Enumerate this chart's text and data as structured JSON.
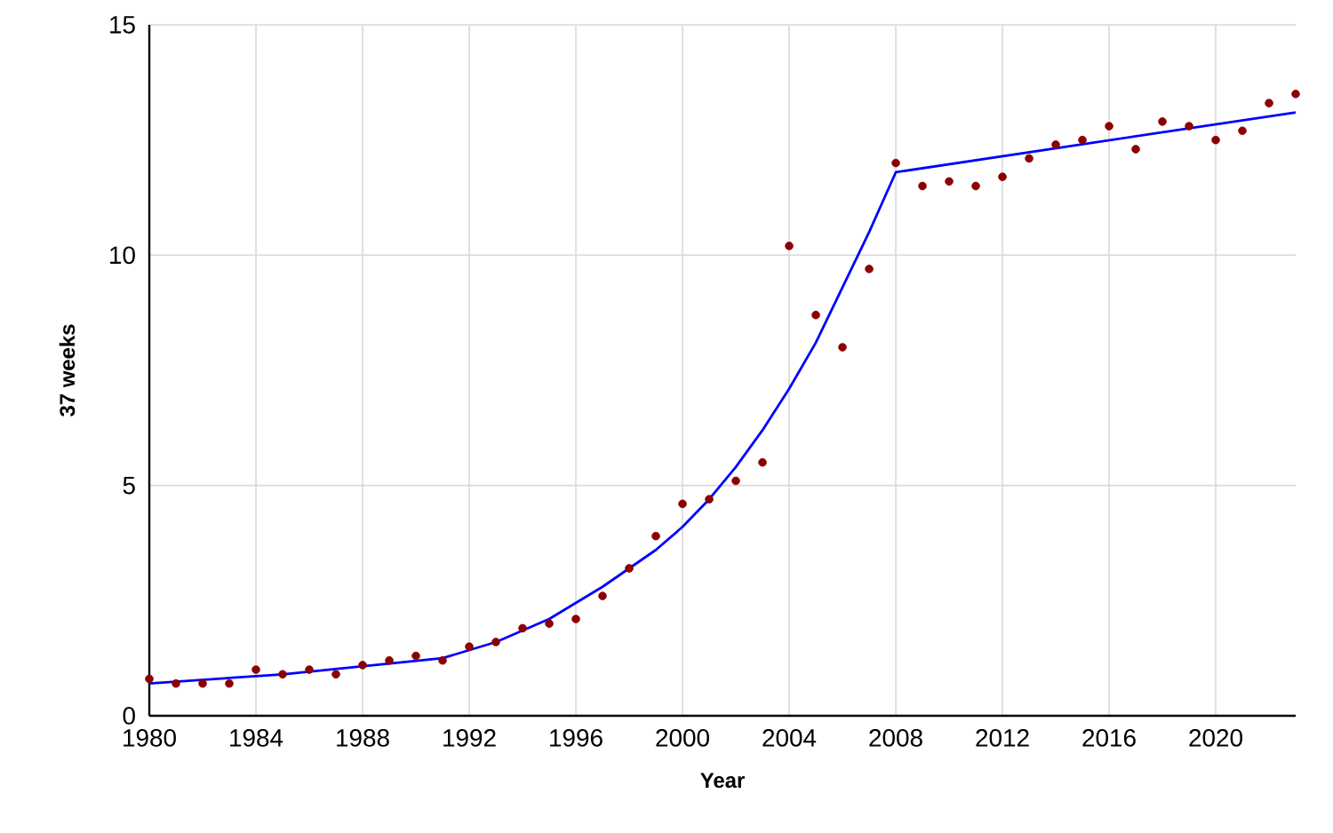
{
  "chart_data": {
    "type": "scatter",
    "xlabel": "Year",
    "ylabel": "37 weeks",
    "xlim": [
      1980,
      2023
    ],
    "ylim": [
      0,
      15
    ],
    "xticks": [
      1980,
      1984,
      1988,
      1992,
      1996,
      2000,
      2004,
      2008,
      2012,
      2016,
      2020
    ],
    "yticks": [
      0,
      5,
      10,
      15
    ],
    "grid": true,
    "marker": "circle",
    "series": [
      {
        "color": "#8b0000",
        "x": [
          1980,
          1981,
          1982,
          1983,
          1984,
          1985,
          1986,
          1987,
          1988,
          1989,
          1990,
          1991,
          1992,
          1993,
          1994,
          1995,
          1996,
          1997,
          1998,
          1999,
          2000,
          2001,
          2002,
          2003,
          2004,
          2005,
          2006,
          2007,
          2008,
          2009,
          2010,
          2011,
          2012,
          2013,
          2014,
          2015,
          2016,
          2017,
          2018,
          2019,
          2020,
          2021,
          2022,
          2023
        ],
        "values": [
          0.8,
          0.7,
          0.7,
          0.7,
          1.0,
          0.9,
          1.0,
          0.9,
          1.1,
          1.2,
          1.3,
          1.2,
          1.5,
          1.6,
          1.9,
          2.0,
          2.1,
          2.6,
          3.2,
          3.9,
          4.6,
          4.7,
          5.1,
          5.5,
          10.2,
          8.7,
          8.0,
          9.7,
          12.0,
          11.5,
          11.6,
          11.5,
          11.7,
          12.1,
          12.4,
          12.5,
          12.8,
          12.3,
          12.9,
          12.8,
          12.5,
          12.7,
          13.3,
          13.5
        ]
      },
      {
        "type": "line",
        "color": "#0000ff",
        "marker": "none",
        "x": [
          1980,
          1985,
          1991,
          1993,
          1995,
          1997,
          1999,
          2000,
          2001,
          2002,
          2003,
          2004,
          2005,
          2006,
          2007,
          2008,
          2023
        ],
        "values": [
          0.7,
          0.9,
          1.25,
          1.6,
          2.1,
          2.8,
          3.6,
          4.1,
          4.7,
          5.4,
          6.2,
          7.1,
          8.1,
          9.3,
          10.5,
          11.8,
          13.1
        ]
      }
    ]
  }
}
